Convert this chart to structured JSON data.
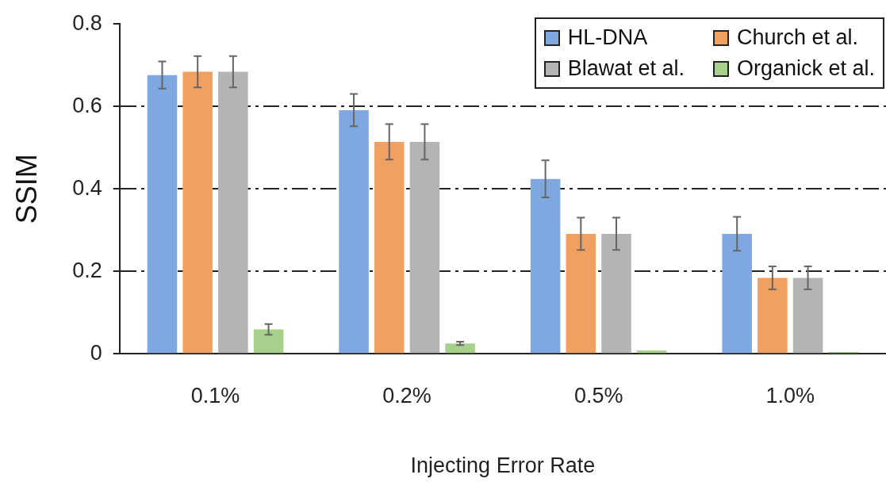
{
  "chart_data": {
    "type": "bar",
    "xlabel": "Injecting Error Rate",
    "ylabel": "SSIM",
    "categories": [
      "0.1%",
      "0.2%",
      "0.5%",
      "1.0%"
    ],
    "series": [
      {
        "name": "HL-DNA",
        "color": "#7fa8e0",
        "values": [
          0.676,
          0.591,
          0.424,
          0.291
        ],
        "errors": [
          0.033,
          0.039,
          0.045,
          0.041
        ]
      },
      {
        "name": "Church et al.",
        "color": "#f0a060",
        "values": [
          0.684,
          0.514,
          0.291,
          0.184
        ],
        "errors": [
          0.038,
          0.043,
          0.039,
          0.028
        ]
      },
      {
        "name": "Blawat et al.",
        "color": "#b4b4b4",
        "values": [
          0.684,
          0.514,
          0.291,
          0.184
        ],
        "errors": [
          0.038,
          0.043,
          0.039,
          0.028
        ]
      },
      {
        "name": "Organick et al.",
        "color": "#a8d08d",
        "values": [
          0.059,
          0.025,
          0.008,
          0.004
        ],
        "errors": [
          0.013,
          0.004,
          null,
          null
        ]
      }
    ],
    "ylim": [
      0,
      0.8
    ],
    "yticks": [
      0,
      0.2,
      0.4,
      0.6,
      0.8
    ],
    "grid": "y",
    "legend": "top right"
  }
}
